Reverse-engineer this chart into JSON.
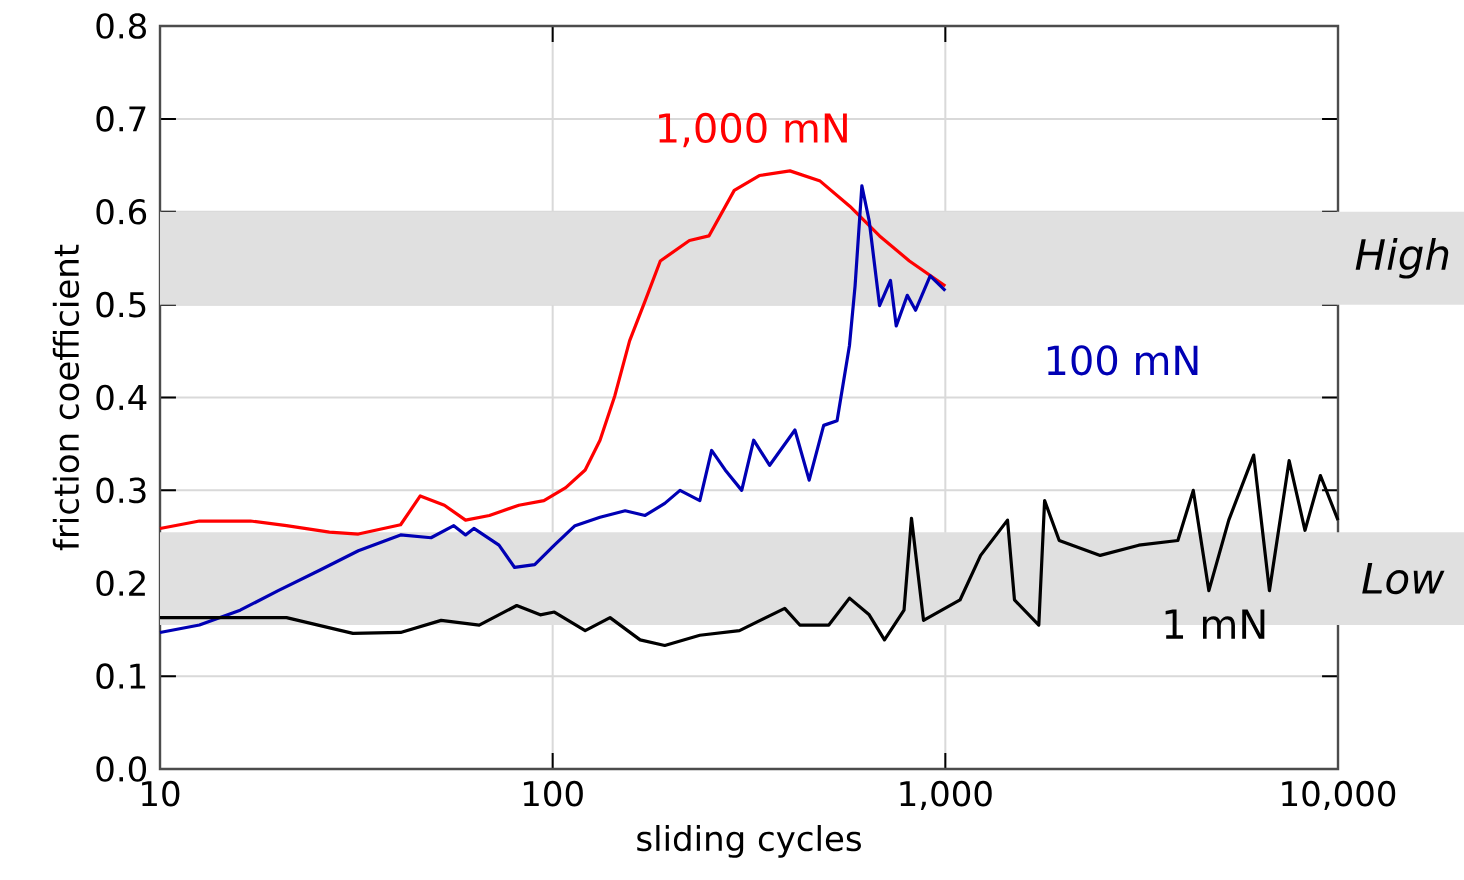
{
  "chart_data": {
    "type": "line",
    "xlabel": "sliding cycles",
    "ylabel": "friction coefficient",
    "log": "x",
    "grid": true,
    "xlim": [
      10,
      10000
    ],
    "ylim": [
      0,
      0.8
    ],
    "xticks": [
      10,
      100,
      {
        "value": 1000,
        "label": "1,000"
      },
      {
        "value": 10000,
        "label": "10,000"
      }
    ],
    "yticks": [
      {
        "value": 0,
        "label": "0.0"
      },
      0.1,
      0.2,
      0.3,
      0.4,
      0.5,
      0.6,
      0.7,
      0.8
    ],
    "bands": [
      {
        "axis": "y",
        "from": 0.5,
        "to": 0.6,
        "label": "High",
        "color": "#e0e0e0"
      },
      {
        "axis": "y",
        "from": 0.155,
        "to": 0.255,
        "label": "Low",
        "color": "#e0e0e0"
      }
    ],
    "series": [
      {
        "name": "1,000 mN",
        "color": "#ff0000",
        "x": [
          10,
          12.6,
          17,
          21,
          27,
          32,
          41,
          46,
          53,
          60,
          69,
          82,
          95,
          108,
          121,
          132,
          144,
          157,
          172,
          188,
          223,
          250,
          290,
          336,
          402,
          480,
          571,
          680,
          810,
          1000
        ],
        "values": [
          0.259,
          0.267,
          0.267,
          0.262,
          0.255,
          0.253,
          0.263,
          0.294,
          0.284,
          0.268,
          0.273,
          0.284,
          0.289,
          0.303,
          0.322,
          0.354,
          0.402,
          0.461,
          0.504,
          0.547,
          0.569,
          0.574,
          0.623,
          0.639,
          0.644,
          0.633,
          0.606,
          0.574,
          0.547,
          0.52
        ]
      },
      {
        "name": "100 mN",
        "color": "#0000b4",
        "x": [
          10,
          12.6,
          16,
          20,
          25.5,
          32,
          41,
          49,
          56,
          60,
          63,
          73,
          80,
          90,
          101,
          114,
          132,
          153,
          172,
          193,
          211,
          237,
          254,
          275,
          303,
          325,
          357,
          414,
          450,
          490,
          530,
          570,
          589,
          613,
          640,
          680,
          725,
          750,
          800,
          840,
          915,
          1000
        ],
        "values": [
          0.147,
          0.155,
          0.171,
          0.192,
          0.214,
          0.235,
          0.252,
          0.249,
          0.262,
          0.252,
          0.259,
          0.241,
          0.217,
          0.22,
          0.241,
          0.262,
          0.271,
          0.278,
          0.273,
          0.286,
          0.3,
          0.289,
          0.343,
          0.322,
          0.3,
          0.354,
          0.327,
          0.365,
          0.311,
          0.37,
          0.375,
          0.456,
          0.52,
          0.628,
          0.59,
          0.499,
          0.526,
          0.477,
          0.51,
          0.494,
          0.531,
          0.515
        ]
      },
      {
        "name": "1 mN",
        "color": "#000000",
        "x": [
          10,
          15,
          21,
          31,
          41,
          52,
          65,
          81,
          93,
          101,
          121,
          140,
          167,
          193,
          237,
          299,
          390,
          426,
          505,
          570,
          640,
          700,
          785,
          820,
          880,
          1090,
          1230,
          1440,
          1500,
          1730,
          1790,
          1950,
          2480,
          3110,
          3910,
          4280,
          4690,
          5270,
          6100,
          6690,
          7510,
          8240,
          9020,
          10000
        ],
        "values": [
          0.163,
          0.163,
          0.163,
          0.146,
          0.147,
          0.16,
          0.155,
          0.176,
          0.166,
          0.169,
          0.149,
          0.163,
          0.139,
          0.133,
          0.144,
          0.149,
          0.173,
          0.155,
          0.155,
          0.184,
          0.166,
          0.139,
          0.171,
          0.27,
          0.16,
          0.182,
          0.23,
          0.268,
          0.182,
          0.155,
          0.289,
          0.246,
          0.23,
          0.241,
          0.246,
          0.3,
          0.192,
          0.268,
          0.338,
          0.192,
          0.332,
          0.257,
          0.316,
          0.268
        ]
      }
    ]
  }
}
